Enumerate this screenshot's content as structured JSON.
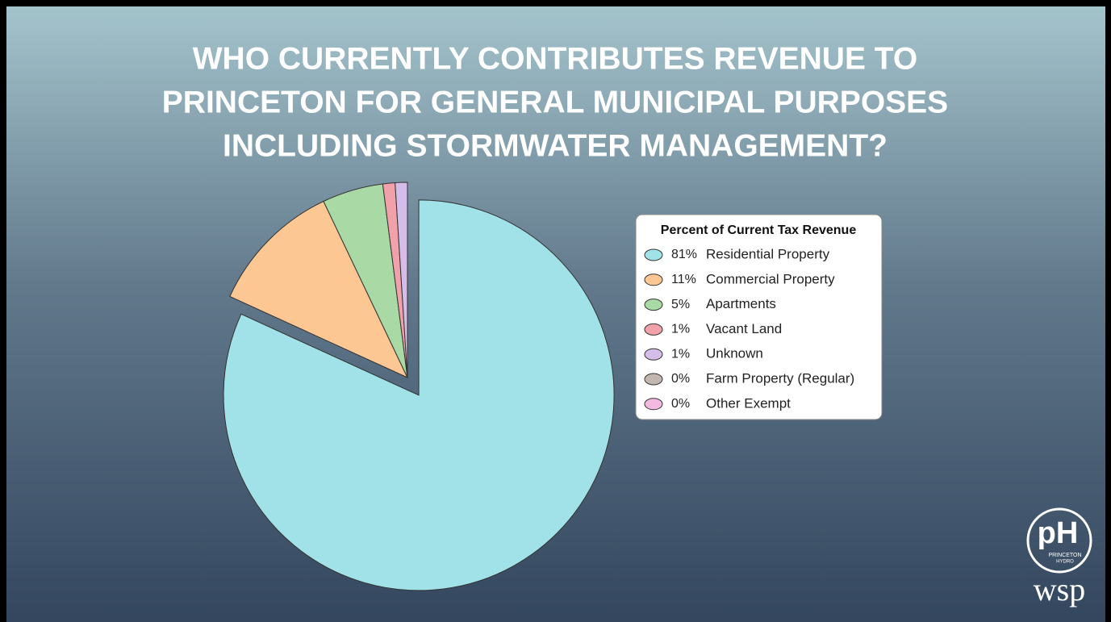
{
  "chart_data": {
    "type": "pie",
    "title": [
      "WHO CURRENTLY CONTRIBUTES REVENUE TO",
      "PRINCETON FOR GENERAL MUNICIPAL PURPOSES",
      "INCLUDING STORMWATER MANAGEMENT?"
    ],
    "legend_title": "Percent of Current Tax Revenue",
    "categories": [
      "Residential Property",
      "Commercial Property",
      "Apartments",
      "Vacant Land",
      "Unknown",
      "Farm Property (Regular)",
      "Other Exempt"
    ],
    "values": [
      81,
      11,
      5,
      1,
      1,
      0,
      0
    ],
    "value_labels": [
      "81%",
      "11%",
      "5%",
      "1%",
      "1%",
      "0%",
      "0%"
    ],
    "colors": [
      "#a0e2e8",
      "#fcc792",
      "#a9d9a5",
      "#f0a1a9",
      "#d4bde9",
      "#c2b6b0",
      "#f3b9e2"
    ],
    "exploded": [
      true,
      false,
      false,
      false,
      false,
      false,
      false
    ],
    "legend": "right"
  },
  "logo": {
    "mark": "pH",
    "line1": "PRINCETON",
    "line2": "HYDRO",
    "partner": "wsp"
  }
}
